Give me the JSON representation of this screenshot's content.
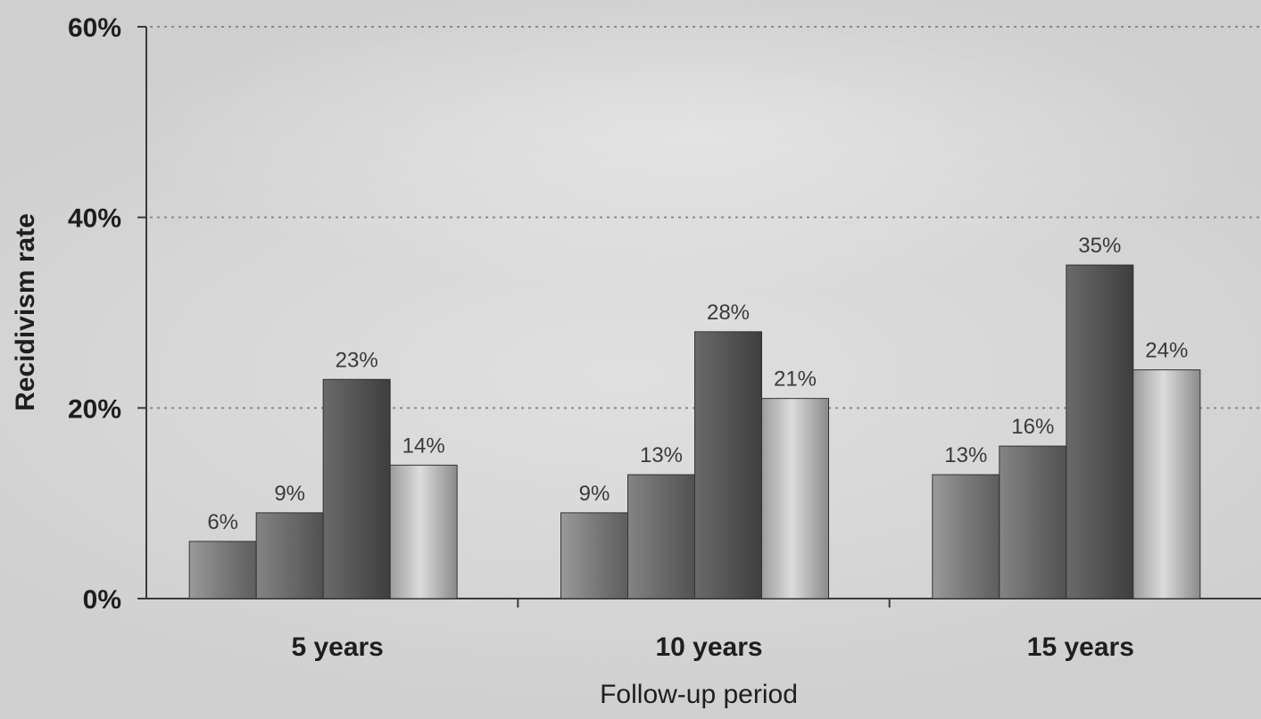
{
  "chart_data": {
    "type": "bar",
    "title": "",
    "xlabel": "Follow-up period",
    "ylabel": "Recidivism rate",
    "categories": [
      "5 years",
      "10 years",
      "15 years"
    ],
    "ylim": [
      0,
      60
    ],
    "yticks": [
      {
        "value": 0,
        "label": "0%"
      },
      {
        "value": 20,
        "label": "20%"
      },
      {
        "value": 40,
        "label": "40%"
      },
      {
        "value": 60,
        "label": "60%"
      }
    ],
    "grid": true,
    "legend": "none",
    "series": [
      {
        "values": [
          6,
          9,
          13
        ],
        "labels": [
          "6%",
          "9%",
          "13%"
        ],
        "color": "#808080"
      },
      {
        "values": [
          9,
          13,
          16
        ],
        "labels": [
          "9%",
          "13%",
          "16%"
        ],
        "color": "#6e6e6e"
      },
      {
        "values": [
          23,
          28,
          35
        ],
        "labels": [
          "23%",
          "28%",
          "35%"
        ],
        "color": "#585858"
      },
      {
        "values": [
          14,
          21,
          24
        ],
        "labels": [
          "14%",
          "21%",
          "24%"
        ],
        "color": "#bdbdbd"
      }
    ]
  }
}
